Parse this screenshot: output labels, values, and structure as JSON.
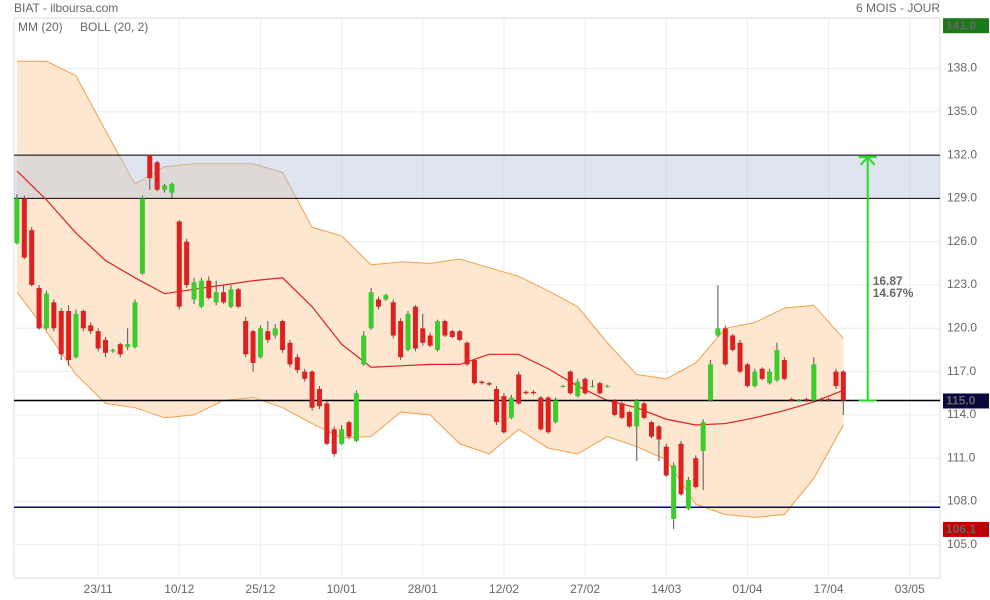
{
  "chart_data": {
    "type": "candlestick",
    "title": "BIAT - ilboursa.com",
    "subtitle": "6 MOIS - JOUR",
    "xlim": [
      -0.4,
      125.1
    ],
    "ylim": [
      102.7,
      141.5
    ],
    "xticks": [
      {
        "value": 11,
        "label": "23/11"
      },
      {
        "value": 22,
        "label": "10/12"
      },
      {
        "value": 33,
        "label": "25/12"
      },
      {
        "value": 44,
        "label": "10/01"
      },
      {
        "value": 55,
        "label": "28/01"
      },
      {
        "value": 66,
        "label": "12/02"
      },
      {
        "value": 77,
        "label": "27/02"
      },
      {
        "value": 88,
        "label": "14/03"
      },
      {
        "value": 99,
        "label": "01/04"
      },
      {
        "value": 110,
        "label": "17/04"
      },
      {
        "value": 121,
        "label": "03/05"
      }
    ],
    "yticks": [
      {
        "value": 105,
        "label": "105.0"
      },
      {
        "value": 108,
        "label": "108.0"
      },
      {
        "value": 111,
        "label": "111.0"
      },
      {
        "value": 114,
        "label": "114.0"
      },
      {
        "value": 117,
        "label": "117.0"
      },
      {
        "value": 120,
        "label": "120.0"
      },
      {
        "value": 123,
        "label": "123.0"
      },
      {
        "value": 126,
        "label": "126.0"
      },
      {
        "value": 129,
        "label": "129.0"
      },
      {
        "value": 132,
        "label": "132.0"
      },
      {
        "value": 135,
        "label": "135.0"
      },
      {
        "value": 138,
        "label": "138.0"
      }
    ],
    "grid": true,
    "up_color": "#3ccc2c",
    "down_color": "#dd2020",
    "candles": [
      [
        125.9,
        129.3,
        125.8,
        129.0
      ],
      [
        129.0,
        129.2,
        124.8,
        124.9
      ],
      [
        126.8,
        127.0,
        122.9,
        123.0
      ],
      [
        122.8,
        123.0,
        119.9,
        120.0
      ],
      [
        120.0,
        122.6,
        119.9,
        122.4
      ],
      [
        121.8,
        122.0,
        119.8,
        120.0
      ],
      [
        121.2,
        121.4,
        117.8,
        118.2
      ],
      [
        121.2,
        121.6,
        117.4,
        117.8
      ],
      [
        118.0,
        121.3,
        117.9,
        121.0
      ],
      [
        121.2,
        121.3,
        119.8,
        120.0
      ],
      [
        120.2,
        120.4,
        119.6,
        119.8
      ],
      [
        119.8,
        120.0,
        118.4,
        118.6
      ],
      [
        119.2,
        119.4,
        118.0,
        118.3
      ],
      [
        118.4,
        118.6,
        118.3,
        118.5
      ],
      [
        118.9,
        119.0,
        118.0,
        118.2
      ],
      [
        118.7,
        120.0,
        118.5,
        118.9
      ],
      [
        118.7,
        122.0,
        118.6,
        121.8
      ],
      [
        123.8,
        129.2,
        123.7,
        129.0
      ],
      [
        132.0,
        132.0,
        129.6,
        130.4
      ],
      [
        131.5,
        131.6,
        129.5,
        129.6
      ],
      [
        129.6,
        130.0,
        129.4,
        129.9
      ],
      [
        129.4,
        130.1,
        129.0,
        130.0
      ],
      [
        127.4,
        127.5,
        121.3,
        121.5
      ],
      [
        126.0,
        126.2,
        122.8,
        123.0
      ],
      [
        122.0,
        123.5,
        121.7,
        123.2
      ],
      [
        121.5,
        123.5,
        121.4,
        123.3
      ],
      [
        123.3,
        123.6,
        122.0,
        122.1
      ],
      [
        121.8,
        123.3,
        121.6,
        122.5
      ],
      [
        122.5,
        123.0,
        121.7,
        121.8
      ],
      [
        121.5,
        123.0,
        121.4,
        122.7
      ],
      [
        122.7,
        122.8,
        121.4,
        121.5
      ],
      [
        120.5,
        120.8,
        118.0,
        118.2
      ],
      [
        119.8,
        119.9,
        117.0,
        117.6
      ],
      [
        118.0,
        120.2,
        117.9,
        120.0
      ],
      [
        119.8,
        120.5,
        119.0,
        119.2
      ],
      [
        119.5,
        120.3,
        119.3,
        120.0
      ],
      [
        120.5,
        120.6,
        118.3,
        118.5
      ],
      [
        119.0,
        119.2,
        117.3,
        117.5
      ],
      [
        118.0,
        118.2,
        116.9,
        117.1
      ],
      [
        117.0,
        117.2,
        116.3,
        116.5
      ],
      [
        117.0,
        117.1,
        114.3,
        114.5
      ],
      [
        115.8,
        116.0,
        114.4,
        114.6
      ],
      [
        114.8,
        115.0,
        111.9,
        112.0
      ],
      [
        113.0,
        113.2,
        111.1,
        111.3
      ],
      [
        112.0,
        113.3,
        111.9,
        113.0
      ],
      [
        113.5,
        113.6,
        112.3,
        112.5
      ],
      [
        112.2,
        115.7,
        112.1,
        115.5
      ],
      [
        117.5,
        119.8,
        117.4,
        119.5
      ],
      [
        120.0,
        122.8,
        119.9,
        122.5
      ],
      [
        122.0,
        122.2,
        121.3,
        121.5
      ],
      [
        122.0,
        122.4,
        121.9,
        122.3
      ],
      [
        121.8,
        122.0,
        119.3,
        119.5
      ],
      [
        120.5,
        120.7,
        117.8,
        118.0
      ],
      [
        118.5,
        121.2,
        118.4,
        121.0
      ],
      [
        121.5,
        121.6,
        118.4,
        118.6
      ],
      [
        120.0,
        121.0,
        118.8,
        119.0
      ],
      [
        119.5,
        119.7,
        118.7,
        118.8
      ],
      [
        118.5,
        120.6,
        118.4,
        120.5
      ],
      [
        120.5,
        120.6,
        119.4,
        119.5
      ],
      [
        119.8,
        119.9,
        119.3,
        119.4
      ],
      [
        119.8,
        119.9,
        119.1,
        119.2
      ],
      [
        119.0,
        119.1,
        117.4,
        117.5
      ],
      [
        117.8,
        117.9,
        116.1,
        116.2
      ],
      [
        116.3,
        116.4,
        116.1,
        116.2
      ],
      [
        116.2,
        116.3,
        116.0,
        116.1
      ],
      [
        115.8,
        116.0,
        113.3,
        113.5
      ],
      [
        115.3,
        115.5,
        112.7,
        112.8
      ],
      [
        113.8,
        115.4,
        113.7,
        115.2
      ],
      [
        116.8,
        117.0,
        114.7,
        114.8
      ],
      [
        115.6,
        115.7,
        115.4,
        115.5
      ],
      [
        115.6,
        115.7,
        115.4,
        115.5
      ],
      [
        115.2,
        115.3,
        112.9,
        113.0
      ],
      [
        115.2,
        115.3,
        112.7,
        112.8
      ],
      [
        113.5,
        115.2,
        113.4,
        115.0
      ],
      [
        116.0,
        116.1,
        115.9,
        116.0
      ],
      [
        117.0,
        117.1,
        115.4,
        115.5
      ],
      [
        115.3,
        116.5,
        115.2,
        116.3
      ],
      [
        116.5,
        116.6,
        115.4,
        115.5
      ],
      [
        116.0,
        116.4,
        115.9,
        116.0
      ],
      [
        116.2,
        116.3,
        115.4,
        115.5
      ],
      [
        116.0,
        116.1,
        115.9,
        116.0
      ],
      [
        115.0,
        115.1,
        113.9,
        114.0
      ],
      [
        114.8,
        114.9,
        113.7,
        113.8
      ],
      [
        114.2,
        114.3,
        113.1,
        113.2
      ],
      [
        113.2,
        115.1,
        110.8,
        115.0
      ],
      [
        114.8,
        114.9,
        113.7,
        113.8
      ],
      [
        113.5,
        113.6,
        112.4,
        112.5
      ],
      [
        113.2,
        113.3,
        110.8,
        112.3
      ],
      [
        111.8,
        112.0,
        109.7,
        109.8
      ],
      [
        106.8,
        110.7,
        106.1,
        110.5
      ],
      [
        112.0,
        112.2,
        108.4,
        108.5
      ],
      [
        107.5,
        109.7,
        107.4,
        109.5
      ],
      [
        111.0,
        111.2,
        108.9,
        109.0
      ],
      [
        111.5,
        113.7,
        108.8,
        113.5
      ],
      [
        115.0,
        117.8,
        114.9,
        117.5
      ],
      [
        119.5,
        123.0,
        119.4,
        120.0
      ],
      [
        120.0,
        120.2,
        117.4,
        117.5
      ],
      [
        119.5,
        119.6,
        118.4,
        118.5
      ],
      [
        119.0,
        119.2,
        116.9,
        117.0
      ],
      [
        117.5,
        117.6,
        115.9,
        116.0
      ],
      [
        116.0,
        117.2,
        115.9,
        117.0
      ],
      [
        117.2,
        117.3,
        116.4,
        116.5
      ],
      [
        116.2,
        117.2,
        116.1,
        117.0
      ],
      [
        116.4,
        119.0,
        116.3,
        118.5
      ],
      [
        117.8,
        118.0,
        116.4,
        116.5
      ],
      [
        115.1,
        115.2,
        114.9,
        115.0
      ],
      [
        115.0,
        115.1,
        114.9,
        115.0
      ],
      [
        115.1,
        115.2,
        114.9,
        115.0
      ],
      [
        115.0,
        118.0,
        114.9,
        117.5
      ],
      [
        115.1,
        115.2,
        114.9,
        115.0
      ],
      [
        115.1,
        115.2,
        114.9,
        115.0
      ],
      [
        117.0,
        117.2,
        115.8,
        116.0
      ],
      [
        117.0,
        117.1,
        114.0,
        115.0
      ]
    ],
    "indicator_x": [
      0,
      4,
      8,
      12,
      16,
      20,
      24,
      28,
      32,
      36,
      40,
      44,
      48,
      52,
      56,
      60,
      64,
      68,
      72,
      76,
      80,
      84,
      88,
      92,
      96,
      100,
      104,
      108,
      112
    ],
    "ma": {
      "name": "MM (20)",
      "color": "#e02020",
      "values": [
        130.9,
        128.9,
        126.6,
        124.7,
        123.5,
        122.4,
        122.7,
        123.0,
        123.3,
        123.5,
        121.5,
        118.9,
        117.3,
        117.4,
        117.5,
        117.5,
        118.2,
        118.2,
        117.2,
        116.0,
        115.0,
        114.5,
        113.7,
        113.3,
        113.4,
        113.8,
        114.3,
        114.9,
        115.7
      ]
    },
    "boll": {
      "name": "BOLL (20, 2)",
      "color": "#f0a04b",
      "upper": [
        138.5,
        138.5,
        137.5,
        133.7,
        130.0,
        131.2,
        131.4,
        131.4,
        131.4,
        130.8,
        127.0,
        126.4,
        124.4,
        124.6,
        124.5,
        124.8,
        124.2,
        123.6,
        122.6,
        121.5,
        119.0,
        116.8,
        116.5,
        117.6,
        120.0,
        120.4,
        121.4,
        121.6,
        119.3
      ],
      "lower": [
        122.5,
        119.8,
        116.8,
        114.8,
        114.5,
        113.8,
        114.0,
        115.0,
        115.2,
        114.5,
        113.4,
        112.4,
        112.5,
        114.2,
        114.0,
        112.0,
        111.3,
        113.0,
        111.7,
        111.3,
        112.5,
        111.8,
        110.9,
        107.8,
        107.1,
        106.9,
        107.1,
        109.6,
        113.3
      ]
    },
    "zone": {
      "low": 129.0,
      "high": 132.0
    },
    "lines": [
      {
        "value": 115.0,
        "color": "#000000"
      },
      {
        "value": 107.6,
        "color": "#00008b"
      }
    ],
    "price_labels": [
      {
        "value": 141.0,
        "label": "141.0",
        "color": "#1a7a1a"
      },
      {
        "value": 115.0,
        "label": "115.0",
        "color": "#0a0a40"
      },
      {
        "value": 106.1,
        "label": "106.1",
        "color": "#c00000"
      }
    ],
    "measure": {
      "at": 115.3,
      "from": 115.0,
      "change": 16.87,
      "percent_label": "14.67%",
      "color": "#22dd22"
    }
  }
}
